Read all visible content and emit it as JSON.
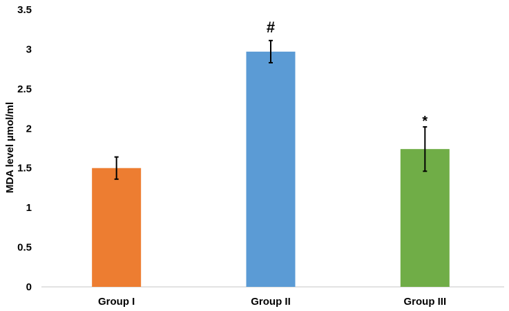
{
  "chart_data": {
    "type": "bar",
    "title": "",
    "xlabel": "",
    "ylabel": "MDA level µmol/ml",
    "ylim": [
      0,
      3.5
    ],
    "yticks": [
      0,
      0.5,
      1,
      1.5,
      2,
      2.5,
      3,
      3.5
    ],
    "ytick_labels": [
      "0",
      "0.5",
      "1",
      "1.5",
      "2",
      "2.5",
      "3",
      "3.5"
    ],
    "grid": false,
    "legend": "none",
    "categories": [
      "Group I",
      "Group II",
      "Group III"
    ],
    "values": [
      1.5,
      2.97,
      1.74
    ],
    "error": [
      0.14,
      0.14,
      0.28
    ],
    "annotations": [
      "",
      "#",
      "*"
    ],
    "colors": [
      "#ed7d31",
      "#5b9bd5",
      "#70ad47"
    ]
  }
}
